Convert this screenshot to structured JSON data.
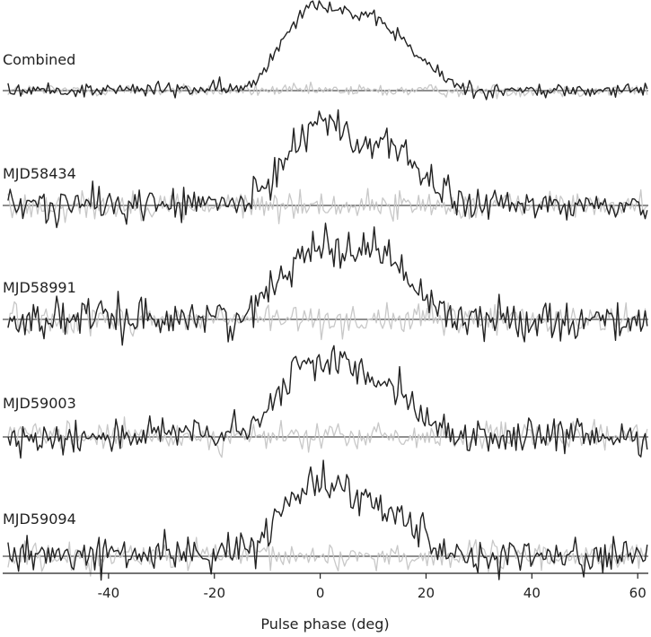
{
  "chart_data": {
    "type": "line",
    "xlabel": "Pulse phase (deg)",
    "xlim": [
      -60,
      62
    ],
    "x_ticks": [
      -40,
      -20,
      0,
      20,
      40,
      60
    ],
    "x_tick_labels": [
      "-40",
      "-20",
      "0",
      "20",
      "40",
      "60"
    ],
    "grid": false,
    "legend": "none",
    "colors": {
      "total_intensity": "#222222",
      "linear_polarization": "#c8c8c8",
      "baseline": "#222222",
      "axis": "#222222"
    },
    "panels": [
      {
        "label": "Combined",
        "noise": 0.045,
        "series": [
          {
            "role": "total intensity",
            "profile": [
              [
                -60,
                0
              ],
              [
                -14,
                0.02
              ],
              [
                -12,
                0.12
              ],
              [
                -9,
                0.4
              ],
              [
                -5,
                0.8
              ],
              [
                -2,
                0.98
              ],
              [
                0,
                1.0
              ],
              [
                4,
                0.92
              ],
              [
                8,
                0.84
              ],
              [
                12,
                0.76
              ],
              [
                15,
                0.62
              ],
              [
                18,
                0.42
              ],
              [
                21,
                0.26
              ],
              [
                24,
                0.12
              ],
              [
                27,
                0.04
              ],
              [
                30,
                0
              ],
              [
                62,
                0
              ]
            ]
          },
          {
            "role": "linear polarization",
            "profile": [
              [
                -60,
                0
              ],
              [
                62,
                0
              ]
            ]
          }
        ]
      },
      {
        "label": "MJD58434",
        "noise": 0.1,
        "series": [
          {
            "role": "total intensity",
            "profile": [
              [
                -60,
                0
              ],
              [
                -14,
                0.02
              ],
              [
                -11,
                0.15
              ],
              [
                -8,
                0.4
              ],
              [
                -5,
                0.72
              ],
              [
                -2,
                0.9
              ],
              [
                0,
                1.0
              ],
              [
                3,
                0.9
              ],
              [
                6,
                0.72
              ],
              [
                9,
                0.68
              ],
              [
                12,
                0.76
              ],
              [
                14,
                0.7
              ],
              [
                17,
                0.5
              ],
              [
                20,
                0.3
              ],
              [
                23,
                0.14
              ],
              [
                26,
                0.05
              ],
              [
                30,
                0
              ],
              [
                62,
                0
              ]
            ]
          },
          {
            "role": "linear polarization",
            "profile": [
              [
                -60,
                0
              ],
              [
                62,
                0
              ]
            ]
          }
        ]
      },
      {
        "label": "MJD58991",
        "noise": 0.11,
        "series": [
          {
            "role": "total intensity",
            "profile": [
              [
                -60,
                0
              ],
              [
                -14,
                0.03
              ],
              [
                -11,
                0.2
              ],
              [
                -7,
                0.55
              ],
              [
                -4,
                0.78
              ],
              [
                -1,
                0.86
              ],
              [
                2,
                0.8
              ],
              [
                6,
                0.82
              ],
              [
                10,
                0.82
              ],
              [
                13,
                0.78
              ],
              [
                15,
                0.55
              ],
              [
                18,
                0.35
              ],
              [
                21,
                0.18
              ],
              [
                24,
                0.08
              ],
              [
                28,
                0
              ],
              [
                62,
                0
              ]
            ]
          },
          {
            "role": "linear polarization",
            "profile": [
              [
                -60,
                0
              ],
              [
                62,
                0
              ]
            ]
          }
        ]
      },
      {
        "label": "MJD59003",
        "noise": 0.1,
        "series": [
          {
            "role": "total intensity",
            "profile": [
              [
                -60,
                0
              ],
              [
                -14,
                0.04
              ],
              [
                -11,
                0.22
              ],
              [
                -7,
                0.55
              ],
              [
                -4,
                0.8
              ],
              [
                0,
                0.86
              ],
              [
                3,
                0.88
              ],
              [
                7,
                0.76
              ],
              [
                11,
                0.7
              ],
              [
                14,
                0.6
              ],
              [
                17,
                0.5
              ],
              [
                19,
                0.3
              ],
              [
                21,
                0.12
              ],
              [
                24,
                0.04
              ],
              [
                28,
                0
              ],
              [
                62,
                0
              ]
            ]
          },
          {
            "role": "linear polarization",
            "profile": [
              [
                -60,
                0
              ],
              [
                62,
                0
              ]
            ]
          }
        ]
      },
      {
        "label": "MJD59094",
        "noise": 0.1,
        "series": [
          {
            "role": "total intensity",
            "profile": [
              [
                -60,
                0
              ],
              [
                -16,
                0.04
              ],
              [
                -12,
                0.15
              ],
              [
                -9,
                0.35
              ],
              [
                -6,
                0.62
              ],
              [
                -3,
                0.82
              ],
              [
                0,
                0.92
              ],
              [
                3,
                0.82
              ],
              [
                6,
                0.7
              ],
              [
                9,
                0.66
              ],
              [
                12,
                0.62
              ],
              [
                15,
                0.5
              ],
              [
                18,
                0.35
              ],
              [
                21,
                0.18
              ],
              [
                24,
                0.06
              ],
              [
                28,
                0
              ],
              [
                62,
                0
              ]
            ]
          },
          {
            "role": "linear polarization",
            "profile": [
              [
                -60,
                0
              ],
              [
                62,
                0
              ]
            ]
          }
        ]
      }
    ]
  }
}
